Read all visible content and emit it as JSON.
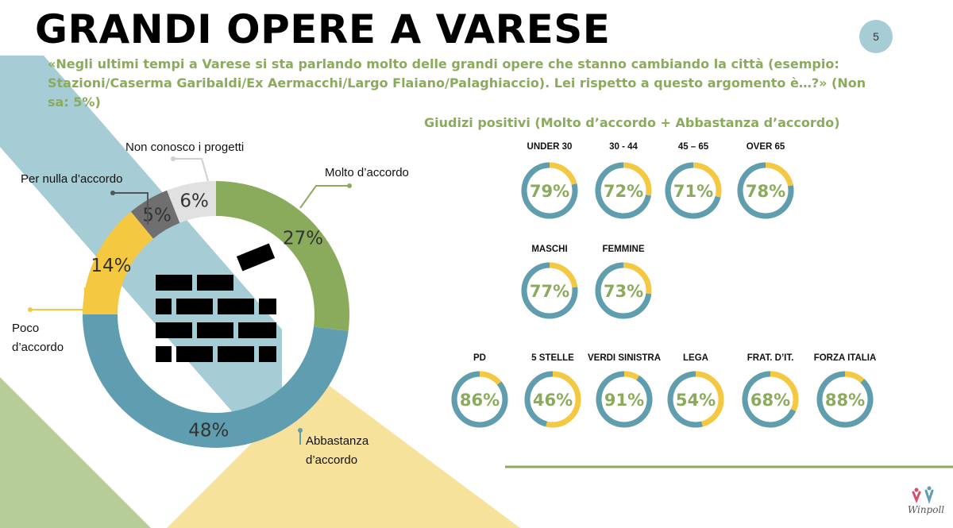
{
  "title": "GRANDI OPERE A VARESE",
  "page_number": "5",
  "question": "«Negli ultimi tempi a Varese si sta parlando molto delle grandi opere che stanno cambiando la città (esempio: Stazioni/Caserma Garibaldi/Ex Aermacchi/Largo Flaiano/Palaghiaccio). Lei rispetto a questo argomento è…?» (Non sa:  5%)",
  "subtitle": "Giudizi positivi (Molto d’accordo + Abbastanza d’accordo)",
  "logo_text": "Winpoll",
  "colors": {
    "green": "#8aab5c",
    "blue": "#5e9eb0",
    "yellow": "#f5c842",
    "dark_gray": "#6f6f6f",
    "light_gray": "#e1e1e1",
    "bg_blue": "#a6ccd5",
    "bg_yellow": "#f7e29b",
    "bg_green": "#b7cd97"
  },
  "icon": "brick-wall-icon",
  "chart_data": [
    {
      "type": "pie",
      "variant": "donut",
      "series": [
        {
          "label": "Molto d’accordo",
          "value": 27,
          "display": "27%",
          "color": "#8aab5c"
        },
        {
          "label": "Abbastanza d’accordo",
          "value": 48,
          "display": "48%",
          "color": "#5e9eb0"
        },
        {
          "label": "Poco d’accordo",
          "value": 14,
          "display": "14%",
          "color": "#f5c842"
        },
        {
          "label": "Per nulla d’accordo",
          "value": 5,
          "display": "5%",
          "color": "#6f6f6f"
        },
        {
          "label": "Non conosco i progetti",
          "value": 6,
          "display": "6%",
          "color": "#e1e1e1"
        }
      ]
    },
    {
      "type": "pie",
      "variant": "mini-donut-gauges",
      "title": "Giudizi positivi (Molto d’accordo + Abbastanza d’accordo)",
      "groups": [
        {
          "name": "eta",
          "items": [
            {
              "label": "UNDER 30",
              "value": 79
            },
            {
              "label": "30 - 44",
              "value": 72
            },
            {
              "label": "45 – 65",
              "value": 71
            },
            {
              "label": "OVER 65",
              "value": 78
            }
          ]
        },
        {
          "name": "sesso",
          "items": [
            {
              "label": "MASCHI",
              "value": 77
            },
            {
              "label": "FEMMINE",
              "value": 73
            }
          ]
        },
        {
          "name": "partito",
          "items": [
            {
              "label": "PD",
              "value": 86
            },
            {
              "label": "5 STELLE",
              "value": 46
            },
            {
              "label": "VERDI SINISTRA",
              "value": 91
            },
            {
              "label": "LEGA",
              "value": 54
            },
            {
              "label": "FRAT. D’IT.",
              "value": 68
            },
            {
              "label": "FORZA ITALIA",
              "value": 88
            }
          ]
        }
      ]
    }
  ]
}
